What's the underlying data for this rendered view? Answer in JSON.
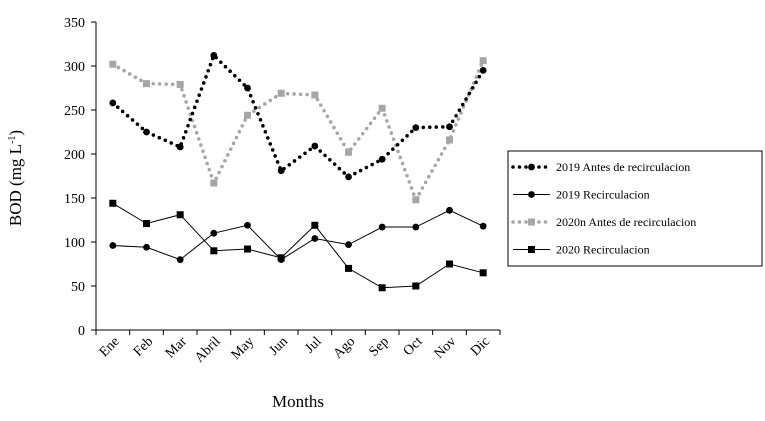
{
  "chart_data": {
    "type": "line",
    "xlabel": "Months",
    "ylabel": "BOD (mg L",
    "ylabel_sup": "-1",
    "ylabel_close": ")",
    "ylim": [
      0,
      350
    ],
    "yticks": [
      0,
      50,
      100,
      150,
      200,
      250,
      300,
      350
    ],
    "categories": [
      "Ene",
      "Feb",
      "Mar",
      "Abril",
      "May",
      "Jun",
      "Jul",
      "Ago",
      "Sep",
      "Oct",
      "Nov",
      "Dic"
    ],
    "grid": false,
    "legend_position": "right",
    "series": [
      {
        "name": "2019 Antes de recirculacion",
        "color": "#000000",
        "line": "dotted",
        "marker": "circle",
        "values": [
          258,
          225,
          208,
          312,
          275,
          181,
          209,
          174,
          194,
          230,
          231,
          295
        ]
      },
      {
        "name": "2019 Recirculacion",
        "color": "#000000",
        "line": "solid",
        "marker": "circle",
        "values": [
          96,
          94,
          80,
          110,
          119,
          80,
          104,
          97,
          117,
          117,
          136,
          118
        ]
      },
      {
        "name": "2020n Antes de recirculacion",
        "color": "#a6a6a6",
        "line": "dotted",
        "marker": "square",
        "values": [
          302,
          280,
          279,
          167,
          244,
          269,
          267,
          202,
          252,
          148,
          216,
          306
        ]
      },
      {
        "name": "2020 Recirculacion",
        "color": "#000000",
        "line": "solid",
        "marker": "square",
        "values": [
          144,
          121,
          131,
          90,
          92,
          82,
          119,
          70,
          48,
          50,
          75,
          65
        ]
      }
    ]
  }
}
